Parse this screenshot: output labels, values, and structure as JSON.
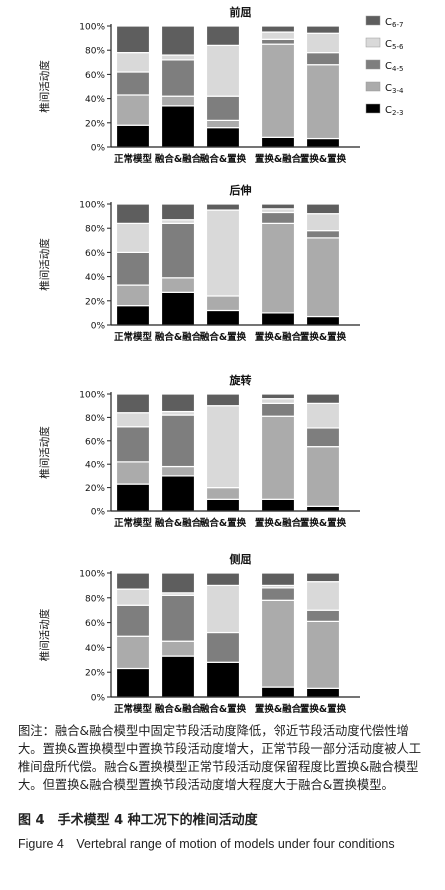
{
  "legend": [
    "C6-7",
    "C5-6",
    "C4-5",
    "C3-4",
    "C2-3"
  ],
  "colors": {
    "C6-7": "#5e5e5e",
    "C5-6": "#d9d9d9",
    "C4-5": "#7e7e7e",
    "C3-4": "#ababab",
    "C2-3": "#000000"
  },
  "chart_data": [
    {
      "type": "bar",
      "stacked": true,
      "title": "前屈",
      "ylabel": "椎间活动度",
      "ylim": [
        0,
        100
      ],
      "yticks": [
        "0%",
        "20%",
        "40%",
        "60%",
        "80%",
        "100%"
      ],
      "categories": [
        "正常模型",
        "融合&融合",
        "融合&置换",
        "置换&融合",
        "置换&置换"
      ],
      "series": [
        {
          "name": "C2-3",
          "values": [
            18,
            34,
            16,
            8,
            7
          ]
        },
        {
          "name": "C3-4",
          "values": [
            25,
            8,
            6,
            77,
            61
          ]
        },
        {
          "name": "C4-5",
          "values": [
            19,
            30,
            20,
            4,
            10
          ]
        },
        {
          "name": "C5-6",
          "values": [
            16,
            4,
            42,
            6,
            16
          ]
        },
        {
          "name": "C6-7",
          "values": [
            22,
            24,
            16,
            5,
            6
          ]
        }
      ]
    },
    {
      "type": "bar",
      "stacked": true,
      "title": "后伸",
      "ylabel": "椎间活动度",
      "ylim": [
        0,
        100
      ],
      "yticks": [
        "0%",
        "20%",
        "40%",
        "60%",
        "80%",
        "100%"
      ],
      "categories": [
        "正常模型",
        "融合&融合",
        "融合&置换",
        "置换&融合",
        "置换&置换"
      ],
      "series": [
        {
          "name": "C2-3",
          "values": [
            16,
            27,
            12,
            10,
            7
          ]
        },
        {
          "name": "C3-4",
          "values": [
            17,
            12,
            12,
            74,
            65
          ]
        },
        {
          "name": "C4-5",
          "values": [
            27,
            45,
            0,
            9,
            6
          ]
        },
        {
          "name": "C5-6",
          "values": [
            24,
            3,
            71,
            3,
            14
          ]
        },
        {
          "name": "C6-7",
          "values": [
            16,
            13,
            5,
            4,
            8
          ]
        }
      ]
    },
    {
      "type": "bar",
      "stacked": true,
      "title": "旋转",
      "ylabel": "椎间活动度",
      "ylim": [
        0,
        100
      ],
      "yticks": [
        "0%",
        "20%",
        "40%",
        "60%",
        "80%",
        "100%"
      ],
      "categories": [
        "正常模型",
        "融合&融合",
        "融合&置换",
        "置换&融合",
        "置换&置换"
      ],
      "series": [
        {
          "name": "C2-3",
          "values": [
            23,
            30,
            10,
            10,
            4
          ]
        },
        {
          "name": "C3-4",
          "values": [
            19,
            8,
            10,
            71,
            51
          ]
        },
        {
          "name": "C4-5",
          "values": [
            30,
            44,
            0,
            11,
            16
          ]
        },
        {
          "name": "C5-6",
          "values": [
            12,
            3,
            70,
            4,
            21
          ]
        },
        {
          "name": "C6-7",
          "values": [
            16,
            15,
            10,
            4,
            8
          ]
        }
      ]
    },
    {
      "type": "bar",
      "stacked": true,
      "title": "侧屈",
      "ylabel": "椎间活动度",
      "ylim": [
        0,
        100
      ],
      "yticks": [
        "0%",
        "20%",
        "40%",
        "60%",
        "80%",
        "100%"
      ],
      "categories": [
        "正常模型",
        "融合&融合",
        "融合&置换",
        "置换&融合",
        "置换&置换"
      ],
      "series": [
        {
          "name": "C2-3",
          "values": [
            23,
            33,
            28,
            8,
            7
          ]
        },
        {
          "name": "C3-4",
          "values": [
            26,
            12,
            0,
            70,
            54
          ]
        },
        {
          "name": "C4-5",
          "values": [
            25,
            37,
            24,
            10,
            9
          ]
        },
        {
          "name": "C5-6",
          "values": [
            13,
            2,
            38,
            2,
            23
          ]
        },
        {
          "name": "C6-7",
          "values": [
            13,
            16,
            10,
            10,
            7
          ]
        }
      ]
    }
  ],
  "caption": {
    "note": "图注：融合&融合模型中固定节段活动度降低，邻近节段活动度代偿性增大。置换&置换模型中置换节段活动度增大，正常节段一部分活动度被人工椎间盘所代偿。融合&置换模型正常节段活动度保留程度比置换&融合模型大。但置换&融合模型置换节段活动度增大程度大于融合&置换模型。",
    "figure_cn": "图 4　手术模型 4 种工况下的椎间活动度",
    "figure_en": "Figure 4　Vertebral range of motion of models under four conditions"
  }
}
